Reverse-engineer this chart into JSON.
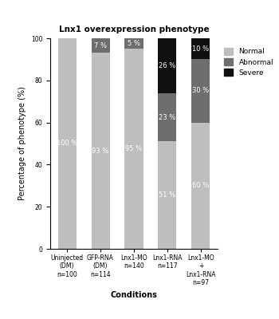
{
  "title": "Lnx1 overexpression phenotype",
  "xlabel": "Conditions",
  "ylabel": "Percentage of phenotype (%)",
  "categories": [
    "Uninjected\n(DM)",
    "GFP-RNA\n(DM)",
    "Lnx1-MO",
    "Lnx1-RNA",
    "Lnx1-MO\n+\nLnx1-RNA"
  ],
  "n_labels": [
    "n=100",
    "n=114",
    "n=140",
    "n=117",
    "n=97"
  ],
  "normal": [
    100,
    93,
    95,
    51,
    60
  ],
  "abnormal": [
    0,
    7,
    5,
    23,
    30
  ],
  "severe": [
    0,
    0,
    0,
    26,
    10
  ],
  "normal_color": "#bebebe",
  "abnormal_color": "#6e6e6e",
  "severe_color": "#101010",
  "ylim": [
    0,
    100
  ],
  "yticks": [
    0,
    20,
    40,
    60,
    80,
    100
  ],
  "title_fontsize": 7.5,
  "label_fontsize": 7,
  "tick_fontsize": 5.5,
  "annotation_fontsize": 6,
  "legend_fontsize": 6.5
}
